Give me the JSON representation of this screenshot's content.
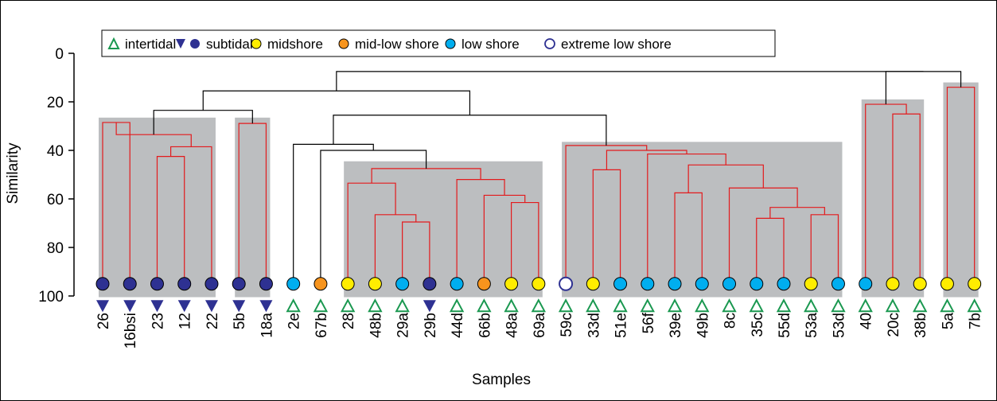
{
  "chart_data": {
    "type": "dendrogram",
    "xlabel": "Samples",
    "ylabel": "Similarity",
    "ylim": [
      0,
      100
    ],
    "y_inverted": true,
    "yticks": [
      0,
      20,
      40,
      60,
      80,
      100
    ],
    "legend_position": "top-left",
    "legend": [
      {
        "key": "intertidal",
        "label": "intertidal",
        "markers": [
          "triangle-open"
        ],
        "color": "#1a9850"
      },
      {
        "key": "subtidal",
        "label": "subtidal",
        "markers": [
          "triangle-down",
          "circle"
        ],
        "color": "#2e3192"
      },
      {
        "key": "midshore",
        "label": "midshore",
        "markers": [
          "circle"
        ],
        "color": "#ffed00"
      },
      {
        "key": "midlow",
        "label": "mid-low shore",
        "markers": [
          "circle"
        ],
        "color": "#f7941d"
      },
      {
        "key": "low",
        "label": "low shore",
        "markers": [
          "circle"
        ],
        "color": "#00aeef"
      },
      {
        "key": "extreme",
        "label": "extreme low shore",
        "markers": [
          "circle-open"
        ],
        "color": "#2e3192"
      }
    ],
    "samples": [
      {
        "label": "26",
        "shore": "subtidal",
        "zone": "subtidal"
      },
      {
        "label": "16bsi",
        "shore": "subtidal",
        "zone": "subtidal"
      },
      {
        "label": "23",
        "shore": "subtidal",
        "zone": "subtidal"
      },
      {
        "label": "12",
        "shore": "subtidal",
        "zone": "subtidal"
      },
      {
        "label": "22",
        "shore": "subtidal",
        "zone": "subtidal"
      },
      {
        "label": "5b",
        "shore": "subtidal",
        "zone": "subtidal"
      },
      {
        "label": "18a",
        "shore": "subtidal",
        "zone": "subtidal"
      },
      {
        "label": "2e",
        "shore": "low",
        "zone": "intertidal"
      },
      {
        "label": "67b",
        "shore": "midlow",
        "zone": "intertidal"
      },
      {
        "label": "28",
        "shore": "midshore",
        "zone": "intertidal"
      },
      {
        "label": "48b",
        "shore": "midshore",
        "zone": "intertidal"
      },
      {
        "label": "29a",
        "shore": "low",
        "zone": "intertidal"
      },
      {
        "label": "29b",
        "shore": "subtidal",
        "zone": "subtidal"
      },
      {
        "label": "44d",
        "shore": "low",
        "zone": "intertidal"
      },
      {
        "label": "66b",
        "shore": "midlow",
        "zone": "intertidal"
      },
      {
        "label": "48a",
        "shore": "midshore",
        "zone": "intertidal"
      },
      {
        "label": "69a",
        "shore": "midshore",
        "zone": "intertidal"
      },
      {
        "label": "59c",
        "shore": "extreme",
        "zone": "intertidal"
      },
      {
        "label": "33d",
        "shore": "midshore",
        "zone": "intertidal"
      },
      {
        "label": "51e",
        "shore": "low",
        "zone": "intertidal"
      },
      {
        "label": "56f",
        "shore": "low",
        "zone": "intertidal"
      },
      {
        "label": "39e",
        "shore": "low",
        "zone": "intertidal"
      },
      {
        "label": "49b",
        "shore": "low",
        "zone": "intertidal"
      },
      {
        "label": "8c",
        "shore": "low",
        "zone": "intertidal"
      },
      {
        "label": "35c",
        "shore": "low",
        "zone": "intertidal"
      },
      {
        "label": "55d",
        "shore": "low",
        "zone": "intertidal"
      },
      {
        "label": "53a",
        "shore": "midshore",
        "zone": "intertidal"
      },
      {
        "label": "53d",
        "shore": "low",
        "zone": "intertidal"
      },
      {
        "label": "40",
        "shore": "low",
        "zone": "intertidal"
      },
      {
        "label": "20c",
        "shore": "midshore",
        "zone": "intertidal"
      },
      {
        "label": "38b",
        "shore": "midshore",
        "zone": "intertidal"
      },
      {
        "label": "5a",
        "shore": "midshore",
        "zone": "intertidal"
      },
      {
        "label": "7b",
        "shore": "midshore",
        "zone": "intertidal"
      }
    ],
    "clusters": [
      {
        "first": 0,
        "last": 4,
        "top": 26.5
      },
      {
        "first": 5,
        "last": 6,
        "top": 26.5
      },
      {
        "first": 9,
        "last": 16,
        "top": 44.5
      },
      {
        "first": 17,
        "last": 27,
        "top": 36.5
      },
      {
        "first": 28,
        "last": 30,
        "top": 19
      },
      {
        "first": 31,
        "last": 32,
        "top": 12
      }
    ],
    "merges": [
      {
        "a": "s0",
        "b": "s1",
        "y": 28.5,
        "color": "red"
      },
      {
        "a": "s2",
        "b": "s3",
        "y": 42.5,
        "color": "red"
      },
      {
        "a": "m1",
        "b": "s4",
        "y": 38.5,
        "color": "red"
      },
      {
        "a": "m2",
        "b": "m3",
        "y": 33.5,
        "color": "red"
      },
      {
        "a": "m0",
        "b": "m4",
        "y": 28.9,
        "color": "red"
      },
      {
        "a": "s5",
        "b": "s6",
        "y": 28.9,
        "color": "red"
      },
      {
        "a": "m5",
        "b": "m6",
        "y": 23.5,
        "color": "black"
      },
      {
        "a": "s11",
        "b": "s12",
        "y": 69.5,
        "color": "red"
      },
      {
        "a": "s10",
        "b": "m8",
        "y": 66.5,
        "color": "red"
      },
      {
        "a": "s9",
        "b": "m9",
        "y": 53.5,
        "color": "red"
      },
      {
        "a": "s15",
        "b": "s16",
        "y": 61.5,
        "color": "red"
      },
      {
        "a": "s14",
        "b": "m11",
        "y": 58.5,
        "color": "red"
      },
      {
        "a": "s13",
        "b": "m12",
        "y": 52,
        "color": "red"
      },
      {
        "a": "m10",
        "b": "m13",
        "y": 47.5,
        "color": "red"
      },
      {
        "a": "s8",
        "b": "m14",
        "y": 40,
        "color": "black"
      },
      {
        "a": "s7",
        "b": "m15",
        "y": 37.5,
        "color": "black"
      },
      {
        "a": "s18",
        "b": "s19",
        "y": 48,
        "color": "red"
      },
      {
        "a": "s24",
        "b": "s25",
        "y": 68,
        "color": "red"
      },
      {
        "a": "s26",
        "b": "s27",
        "y": 66.5,
        "color": "red"
      },
      {
        "a": "s24-25",
        "b": "",
        "y": 0,
        "color": "skip"
      },
      {
        "a": "m20",
        "b": "s27x",
        "y": 0,
        "color": "skip"
      }
    ],
    "tree": [
      {
        "id": "A1",
        "a": 0,
        "b": 1,
        "y": 28.5,
        "c": "red"
      },
      {
        "id": "A2",
        "a": 2,
        "b": 3,
        "y": 42.5,
        "c": "red"
      },
      {
        "id": "A3",
        "a": "A2",
        "b": 4,
        "y": 38.5,
        "c": "red"
      },
      {
        "id": "A4",
        "a": "A2x",
        "b": "A3",
        "y": 33.5,
        "c": "red"
      },
      {
        "id": "A5",
        "a": "A1",
        "b": "A4",
        "y": 28.9,
        "c": "red"
      },
      {
        "id": "B1",
        "a": 5,
        "b": 6,
        "y": 28.9,
        "c": "red"
      }
    ],
    "dendro": [
      {
        "id": "n1",
        "left": 0,
        "right": 1,
        "y": 28.5,
        "c": "r"
      },
      {
        "id": "n2",
        "left": 2,
        "right": 3,
        "y": 42.5,
        "c": "r"
      },
      {
        "id": "n3",
        "left": "n2",
        "right": 4,
        "y": 38.5,
        "c": "r"
      },
      {
        "id": "n5",
        "left": "n1",
        "right": "n3",
        "y": 33.5,
        "c": "r"
      },
      {
        "id": "n6",
        "left": 5,
        "right": 6,
        "y": 28.9,
        "c": "r"
      },
      {
        "id": "n7",
        "left": "n5",
        "right": "n6",
        "y": 23.5,
        "c": "k"
      },
      {
        "id": "p1",
        "left": 11,
        "right": 12,
        "y": 69.5,
        "c": "r"
      },
      {
        "id": "p2",
        "left": 10,
        "right": "p1",
        "y": 66.5,
        "c": "r"
      },
      {
        "id": "p3",
        "left": 9,
        "right": "p2",
        "y": 53.5,
        "c": "r"
      },
      {
        "id": "p4",
        "left": 15,
        "right": 16,
        "y": 61.5,
        "c": "r"
      },
      {
        "id": "p5",
        "left": 14,
        "right": "p4",
        "y": 58.5,
        "c": "r"
      },
      {
        "id": "p6",
        "left": 13,
        "right": "p5",
        "y": 52,
        "c": "r"
      },
      {
        "id": "p7",
        "left": "p3",
        "right": "p6",
        "y": 47.5,
        "c": "r"
      },
      {
        "id": "p8",
        "left": 8,
        "right": "p7",
        "y": 40,
        "c": "k"
      },
      {
        "id": "p9",
        "left": 7,
        "right": "p8",
        "y": 37.5,
        "c": "k"
      },
      {
        "id": "q1",
        "left": 18,
        "right": 19,
        "y": 48,
        "c": "r"
      },
      {
        "id": "q2",
        "left": 24,
        "right": 25,
        "y": 68,
        "c": "r"
      },
      {
        "id": "q3",
        "left": 26,
        "right": 27,
        "y": 66.5,
        "c": "r"
      },
      {
        "id": "q4",
        "left": 25.5,
        "right": "q3",
        "y": 63.5,
        "c": "r",
        "virtual_left": true
      },
      {
        "id": "q5",
        "left": 23,
        "right": "q4",
        "y": 55.5,
        "c": "r"
      },
      {
        "id": "q6",
        "left": 21,
        "right": 22,
        "y": 57.5,
        "c": "r"
      },
      {
        "id": "q7",
        "left": "q6",
        "right": "q5",
        "y": 46,
        "c": "r"
      },
      {
        "id": "q8",
        "left": 20,
        "right": "q7",
        "y": 41.5,
        "c": "r"
      },
      {
        "id": "q9",
        "left": "q1",
        "right": "q8",
        "y": 40,
        "c": "r"
      },
      {
        "id": "q10",
        "left": 17,
        "right": "q9",
        "y": 38,
        "c": "r"
      },
      {
        "id": "t1",
        "left": "p9",
        "right": "q10",
        "y": 25.5,
        "c": "k"
      },
      {
        "id": "t2",
        "left": "n7",
        "right": "t1",
        "y": 15.5,
        "c": "k"
      },
      {
        "id": "r1",
        "left": 29,
        "right": 30,
        "y": 25,
        "c": "r"
      },
      {
        "id": "r2",
        "left": 28,
        "right": "r1",
        "y": 21,
        "c": "r"
      },
      {
        "id": "s1",
        "left": 31,
        "right": 32,
        "y": 14,
        "c": "r"
      },
      {
        "id": "r3",
        "left": "r2",
        "right": "s1",
        "y": 7.5,
        "c": "k"
      },
      {
        "id": "root",
        "left": "t2",
        "right": "r3",
        "y": 7.5,
        "c": "k"
      }
    ]
  }
}
